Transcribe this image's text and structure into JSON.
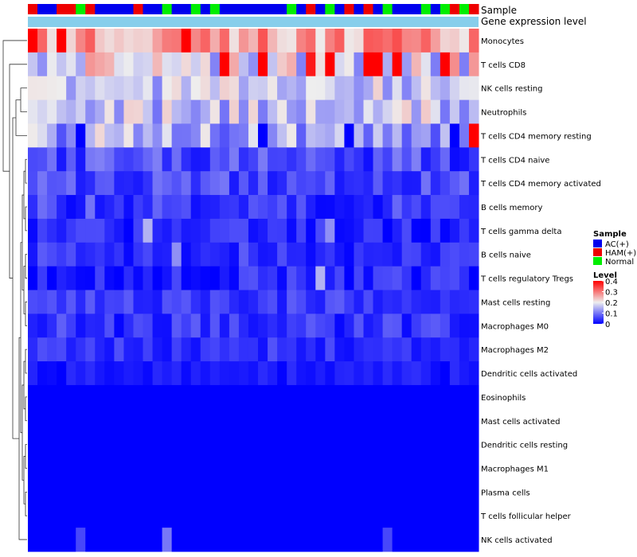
{
  "chart_data": {
    "type": "heatmap",
    "title": "",
    "annotation_tracks": [
      {
        "name": "Sample",
        "label": "Sample"
      },
      {
        "name": "Gene expression level",
        "label": "Gene expression level"
      }
    ],
    "samples": [
      {
        "id": "S1",
        "group": "HAM(+)"
      },
      {
        "id": "S2",
        "group": "AC(+)"
      },
      {
        "id": "S3",
        "group": "AC(+)"
      },
      {
        "id": "S4",
        "group": "HAM(+)"
      },
      {
        "id": "S5",
        "group": "HAM(+)"
      },
      {
        "id": "S6",
        "group": "Normal"
      },
      {
        "id": "S7",
        "group": "HAM(+)"
      },
      {
        "id": "S8",
        "group": "AC(+)"
      },
      {
        "id": "S9",
        "group": "AC(+)"
      },
      {
        "id": "S10",
        "group": "AC(+)"
      },
      {
        "id": "S11",
        "group": "AC(+)"
      },
      {
        "id": "S12",
        "group": "HAM(+)"
      },
      {
        "id": "S13",
        "group": "AC(+)"
      },
      {
        "id": "S14",
        "group": "AC(+)"
      },
      {
        "id": "S15",
        "group": "Normal"
      },
      {
        "id": "S16",
        "group": "AC(+)"
      },
      {
        "id": "S17",
        "group": "AC(+)"
      },
      {
        "id": "S18",
        "group": "Normal"
      },
      {
        "id": "S19",
        "group": "AC(+)"
      },
      {
        "id": "S20",
        "group": "Normal"
      },
      {
        "id": "S21",
        "group": "AC(+)"
      },
      {
        "id": "S22",
        "group": "AC(+)"
      },
      {
        "id": "S23",
        "group": "AC(+)"
      },
      {
        "id": "S24",
        "group": "AC(+)"
      },
      {
        "id": "S25",
        "group": "AC(+)"
      },
      {
        "id": "S26",
        "group": "AC(+)"
      },
      {
        "id": "S27",
        "group": "AC(+)"
      },
      {
        "id": "S28",
        "group": "Normal"
      },
      {
        "id": "S29",
        "group": "AC(+)"
      },
      {
        "id": "S30",
        "group": "HAM(+)"
      },
      {
        "id": "S31",
        "group": "AC(+)"
      },
      {
        "id": "S32",
        "group": "Normal"
      },
      {
        "id": "S33",
        "group": "AC(+)"
      },
      {
        "id": "S34",
        "group": "HAM(+)"
      },
      {
        "id": "S35",
        "group": "AC(+)"
      },
      {
        "id": "S36",
        "group": "HAM(+)"
      },
      {
        "id": "S37",
        "group": "AC(+)"
      },
      {
        "id": "S38",
        "group": "Normal"
      },
      {
        "id": "S39",
        "group": "AC(+)"
      },
      {
        "id": "S40",
        "group": "AC(+)"
      },
      {
        "id": "S41",
        "group": "AC(+)"
      },
      {
        "id": "S42",
        "group": "Normal"
      },
      {
        "id": "S43",
        "group": "AC(+)"
      },
      {
        "id": "S44",
        "group": "Normal"
      },
      {
        "id": "S45",
        "group": "HAM(+)"
      },
      {
        "id": "S46",
        "group": "Normal"
      },
      {
        "id": "S47",
        "group": "HAM(+)"
      }
    ],
    "rows": [
      "Monocytes",
      "T cells CD8",
      "NK cells resting",
      "Neutrophils",
      "T cells CD4 memory resting",
      "T cells CD4 naive",
      "T cells CD4 memory activated",
      "B cells memory",
      "T cells gamma delta",
      "B cells naive",
      "T cells regulatory  Tregs",
      "Mast cells resting",
      "Macrophages M0",
      "Macrophages M2",
      "Dendritic cells activated",
      "Eosinophils",
      "Mast cells activated",
      "Dendritic cells resting",
      "Macrophages M1",
      "Plasma cells",
      "T cells follicular helper",
      "NK cells activated"
    ],
    "row_profiles": [
      {
        "row": "Monocytes",
        "base": 0.27,
        "amp": 0.07,
        "spikes": [
          [
            0,
            0.4
          ],
          [
            3,
            0.4
          ],
          [
            16,
            0.4
          ]
        ]
      },
      {
        "row": "T cells CD8",
        "base": 0.2,
        "amp": 0.1,
        "spikes": [
          [
            20,
            0.42
          ],
          [
            24,
            0.42
          ],
          [
            29,
            0.38
          ],
          [
            31,
            0.42
          ],
          [
            35,
            0.42
          ],
          [
            36,
            0.42
          ],
          [
            38,
            0.42
          ],
          [
            43,
            0.42
          ]
        ]
      },
      {
        "row": "NK cells resting",
        "base": 0.17,
        "amp": 0.06,
        "spikes": []
      },
      {
        "row": "Neutrophils",
        "base": 0.16,
        "amp": 0.07,
        "spikes": []
      },
      {
        "row": "T cells CD4 memory resting",
        "base": 0.14,
        "amp": 0.08,
        "spikes": [
          [
            5,
            0.0
          ],
          [
            24,
            0.0
          ],
          [
            33,
            0.0
          ],
          [
            44,
            0.0
          ],
          [
            46,
            0.42
          ]
        ]
      },
      {
        "row": "T cells CD4 naive",
        "base": 0.06,
        "amp": 0.05,
        "spikes": []
      },
      {
        "row": "T cells CD4 memory activated",
        "base": 0.06,
        "amp": 0.04,
        "spikes": []
      },
      {
        "row": "B cells memory",
        "base": 0.05,
        "amp": 0.05,
        "spikes": []
      },
      {
        "row": "T cells gamma delta",
        "base": 0.03,
        "amp": 0.04,
        "spikes": [
          [
            12,
            0.15
          ],
          [
            31,
            0.12
          ]
        ]
      },
      {
        "row": "B cells naive",
        "base": 0.04,
        "amp": 0.04,
        "spikes": [
          [
            15,
            0.12
          ]
        ]
      },
      {
        "row": "T cells regulatory  Tregs",
        "base": 0.03,
        "amp": 0.04,
        "spikes": [
          [
            30,
            0.15
          ]
        ]
      },
      {
        "row": "Mast cells resting",
        "base": 0.05,
        "amp": 0.03,
        "spikes": []
      },
      {
        "row": "Macrophages M0",
        "base": 0.04,
        "amp": 0.04,
        "spikes": []
      },
      {
        "row": "Macrophages M2",
        "base": 0.04,
        "amp": 0.03,
        "spikes": []
      },
      {
        "row": "Dendritic cells activated",
        "base": 0.02,
        "amp": 0.02,
        "spikes": []
      },
      {
        "row": "Eosinophils",
        "base": 0.0,
        "amp": 0.0,
        "spikes": []
      },
      {
        "row": "Mast cells activated",
        "base": 0.0,
        "amp": 0.0,
        "spikes": []
      },
      {
        "row": "Dendritic cells resting",
        "base": 0.0,
        "amp": 0.0,
        "spikes": []
      },
      {
        "row": "Macrophages M1",
        "base": 0.0,
        "amp": 0.0,
        "spikes": []
      },
      {
        "row": "Plasma cells",
        "base": 0.0,
        "amp": 0.0,
        "spikes": []
      },
      {
        "row": "T cells follicular helper",
        "base": 0.0,
        "amp": 0.0,
        "spikes": []
      },
      {
        "row": "NK cells activated",
        "base": 0.0,
        "amp": 0.0,
        "spikes": [
          [
            5,
            0.06
          ],
          [
            14,
            0.1
          ],
          [
            37,
            0.06
          ]
        ]
      }
    ],
    "color_scale": {
      "low_color": "#0000ff",
      "mid_color": "#eeeeee",
      "high_color": "#ff0000",
      "min": 0,
      "mid": 0.2,
      "max": 0.4
    },
    "legend": {
      "sample_title": "Sample",
      "sample_groups": [
        {
          "label": "AC(+)",
          "color": "#0000ee"
        },
        {
          "label": "HAM(+)",
          "color": "#ee0000"
        },
        {
          "label": "Normal",
          "color": "#00ee00"
        }
      ],
      "level_title": "Level",
      "level_ticks": [
        "0.4",
        "0.3",
        "0.2",
        "0.1",
        "0"
      ],
      "level_values": [
        0.4,
        0.3,
        0.2,
        0.1,
        0
      ],
      "position": "right"
    },
    "annotation_bar_color": "#87ceeb",
    "dendrogram": "rows-left"
  }
}
